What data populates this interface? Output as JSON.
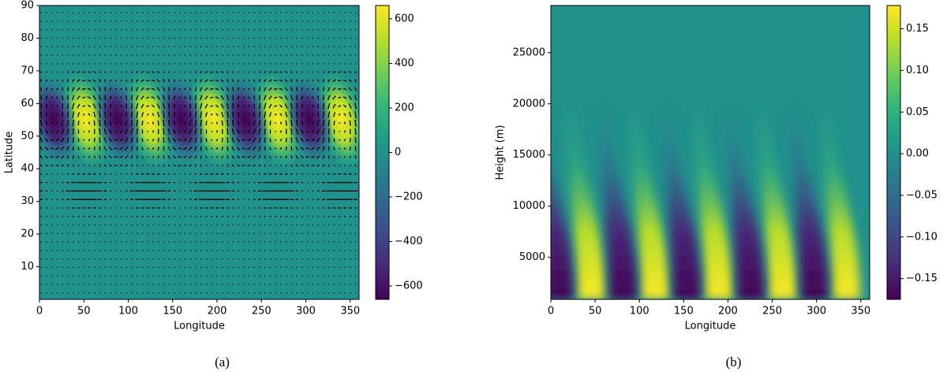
{
  "chart_data": [
    {
      "type": "heatmap",
      "x_label": "Longitude",
      "y_label": "Latitude",
      "caption": "(a)",
      "colormap": "viridis",
      "quiver": true,
      "xlim": [
        0,
        360
      ],
      "xticks": [
        0,
        50,
        100,
        150,
        200,
        250,
        300,
        350
      ],
      "ylim": [
        0,
        90
      ],
      "yticks": [
        10,
        20,
        30,
        40,
        50,
        60,
        70,
        80,
        90
      ],
      "clim": [
        -660,
        660
      ],
      "cticks": [
        {
          "value": -600,
          "label": "−600"
        },
        {
          "value": -400,
          "label": "−400"
        },
        {
          "value": -200,
          "label": "−200"
        },
        0,
        200,
        400,
        600
      ]
    },
    {
      "type": "heatmap",
      "x_label": "Longitude",
      "y_label": "Height (m)",
      "caption": "(b)",
      "colormap": "viridis",
      "quiver": false,
      "xlim": [
        0,
        360
      ],
      "xticks": [
        0,
        50,
        100,
        150,
        200,
        250,
        300,
        350
      ],
      "ylim": [
        900,
        29600
      ],
      "yticks": [
        5000,
        10000,
        15000,
        20000,
        25000
      ],
      "clim": [
        -0.175,
        0.178
      ],
      "cticks": [
        {
          "value": -0.15,
          "label": "−0.15"
        },
        {
          "value": -0.1,
          "label": "−0.10"
        },
        {
          "value": -0.05,
          "label": "−0.05"
        },
        {
          "value": 0,
          "label": "0.00"
        },
        {
          "value": 0.05,
          "label": "0.05"
        },
        {
          "value": 0.1,
          "label": "0.10"
        },
        {
          "value": 0.15,
          "label": "0.15"
        }
      ]
    }
  ]
}
